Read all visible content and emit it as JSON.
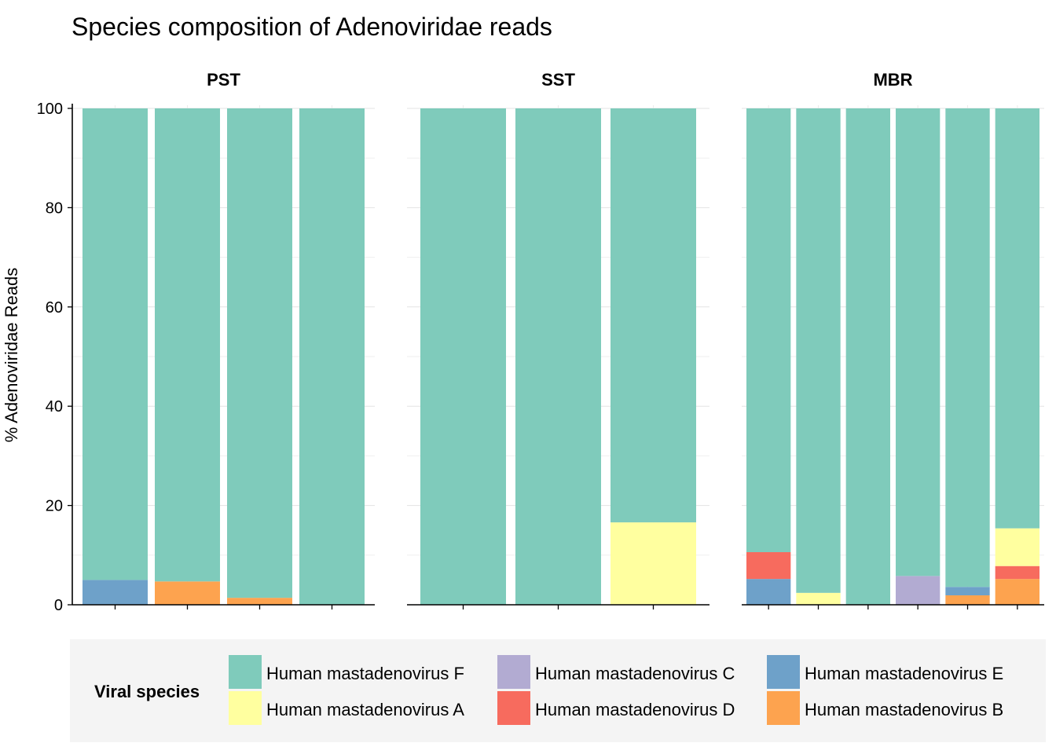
{
  "chart_data": {
    "type": "bar",
    "stacked": true,
    "title": "Species composition of Adenoviridae reads",
    "ylabel": "% Adenoviridae Reads",
    "xlabel": "",
    "ylim": [
      0,
      100
    ],
    "yticks": [
      0,
      20,
      40,
      60,
      80,
      100
    ],
    "grid": true,
    "legend_position": "bottom",
    "legend_title": "Viral species",
    "species": [
      {
        "name": "Human mastadenovirus F",
        "color": "#7fcbbb"
      },
      {
        "name": "Human mastadenovirus A",
        "color": "#ffff9f"
      },
      {
        "name": "Human mastadenovirus C",
        "color": "#b2abd2"
      },
      {
        "name": "Human mastadenovirus D",
        "color": "#f76b5e"
      },
      {
        "name": "Human mastadenovirus E",
        "color": "#6ea1c9"
      },
      {
        "name": "Human mastadenovirus B",
        "color": "#fda34f"
      }
    ],
    "stack_order_bottom_to_top": [
      "Human mastadenovirus B",
      "Human mastadenovirus E",
      "Human mastadenovirus C",
      "Human mastadenovirus D",
      "Human mastadenovirus A",
      "Human mastadenovirus F"
    ],
    "facets": [
      {
        "name": "PST",
        "bars": [
          {
            "Human mastadenovirus E": 5.0,
            "Human mastadenovirus F": 95.0
          },
          {
            "Human mastadenovirus B": 4.7,
            "Human mastadenovirus F": 95.3
          },
          {
            "Human mastadenovirus B": 1.4,
            "Human mastadenovirus F": 98.6
          },
          {
            "Human mastadenovirus F": 100.0
          }
        ]
      },
      {
        "name": "SST",
        "bars": [
          {
            "Human mastadenovirus F": 100.0
          },
          {
            "Human mastadenovirus F": 100.0
          },
          {
            "Human mastadenovirus A": 16.6,
            "Human mastadenovirus F": 83.4
          }
        ]
      },
      {
        "name": "MBR",
        "bars": [
          {
            "Human mastadenovirus E": 5.2,
            "Human mastadenovirus D": 5.4,
            "Human mastadenovirus F": 89.4
          },
          {
            "Human mastadenovirus A": 2.4,
            "Human mastadenovirus F": 97.6
          },
          {
            "Human mastadenovirus F": 100.0
          },
          {
            "Human mastadenovirus C": 5.8,
            "Human mastadenovirus F": 94.2
          },
          {
            "Human mastadenovirus B": 1.9,
            "Human mastadenovirus E": 1.7,
            "Human mastadenovirus F": 96.4
          },
          {
            "Human mastadenovirus B": 5.2,
            "Human mastadenovirus D": 2.6,
            "Human mastadenovirus A": 7.6,
            "Human mastadenovirus F": 84.6
          }
        ]
      }
    ],
    "legend_layout": [
      [
        "Human mastadenovirus F",
        "Human mastadenovirus C",
        "Human mastadenovirus E"
      ],
      [
        "Human mastadenovirus A",
        "Human mastadenovirus D",
        "Human mastadenovirus B"
      ]
    ]
  }
}
